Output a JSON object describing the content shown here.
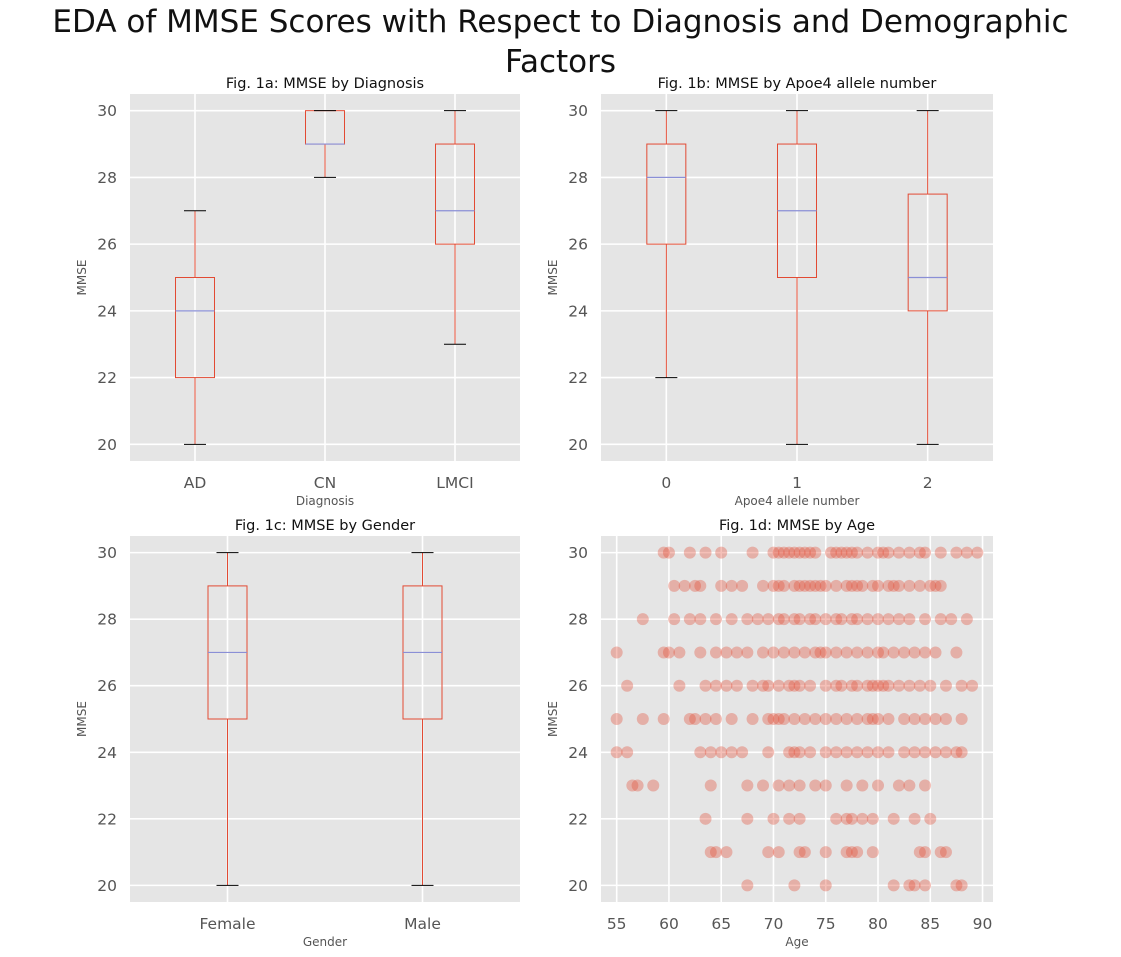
{
  "figure": {
    "suptitle": "EDA of MMSE Scores with Respect to Diagnosis and Demographic Factors"
  },
  "colors": {
    "panel_bg": "#e5e5e5",
    "grid": "#ffffff",
    "box": "#e24a33",
    "median": "#8a8fd6",
    "cap": "#000000",
    "scatter": "#e24a33"
  },
  "chart_data": [
    {
      "type": "box",
      "title": "Fig. 1a: MMSE by Diagnosis",
      "xlabel": "Diagnosis",
      "ylabel": "MMSE",
      "ylim": [
        19.5,
        30.5
      ],
      "yticks": [
        20,
        22,
        24,
        26,
        28,
        30
      ],
      "categories": [
        "AD",
        "CN",
        "LMCI"
      ],
      "boxes": [
        {
          "whislo": 20,
          "q1": 22,
          "med": 24,
          "q3": 25,
          "whishi": 27
        },
        {
          "whislo": 28,
          "q1": 29,
          "med": 29,
          "q3": 30,
          "whishi": 30
        },
        {
          "whislo": 23,
          "q1": 26,
          "med": 27,
          "q3": 29,
          "whishi": 30
        }
      ]
    },
    {
      "type": "box",
      "title": "Fig. 1b: MMSE by Apoe4 allele number",
      "xlabel": "Apoe4 allele number",
      "ylabel": "MMSE",
      "ylim": [
        19.5,
        30.5
      ],
      "yticks": [
        20,
        22,
        24,
        26,
        28,
        30
      ],
      "categories": [
        "0",
        "1",
        "2"
      ],
      "boxes": [
        {
          "whislo": 22,
          "q1": 26,
          "med": 28,
          "q3": 29,
          "whishi": 30
        },
        {
          "whislo": 20,
          "q1": 25,
          "med": 27,
          "q3": 29,
          "whishi": 30
        },
        {
          "whislo": 20,
          "q1": 24,
          "med": 25,
          "q3": 27.5,
          "whishi": 30
        }
      ]
    },
    {
      "type": "box",
      "title": "Fig. 1c: MMSE by Gender",
      "xlabel": "Gender",
      "ylabel": "MMSE",
      "ylim": [
        19.5,
        30.5
      ],
      "yticks": [
        20,
        22,
        24,
        26,
        28,
        30
      ],
      "categories": [
        "Female",
        "Male"
      ],
      "boxes": [
        {
          "whislo": 20,
          "q1": 25,
          "med": 27,
          "q3": 29,
          "whishi": 30
        },
        {
          "whislo": 20,
          "q1": 25,
          "med": 27,
          "q3": 29,
          "whishi": 30
        }
      ]
    },
    {
      "type": "scatter",
      "title": "Fig. 1d: MMSE by Age",
      "xlabel": "Age",
      "ylabel": "MMSE",
      "xlim": [
        53.5,
        91
      ],
      "ylim": [
        19.5,
        30.5
      ],
      "xticks": [
        55,
        60,
        65,
        70,
        75,
        80,
        85,
        90
      ],
      "yticks": [
        20,
        22,
        24,
        26,
        28,
        30
      ],
      "points": [
        [
          59.5,
          30
        ],
        [
          60,
          30
        ],
        [
          62,
          30
        ],
        [
          63.5,
          30
        ],
        [
          65,
          30
        ],
        [
          68,
          30
        ],
        [
          70,
          30
        ],
        [
          70.5,
          30
        ],
        [
          71,
          30
        ],
        [
          71.5,
          30
        ],
        [
          72,
          30
        ],
        [
          72.5,
          30
        ],
        [
          73,
          30
        ],
        [
          73.5,
          30
        ],
        [
          74,
          30
        ],
        [
          75.5,
          30
        ],
        [
          76,
          30
        ],
        [
          76.5,
          30
        ],
        [
          77,
          30
        ],
        [
          77.5,
          30
        ],
        [
          78,
          30
        ],
        [
          79,
          30
        ],
        [
          80,
          30
        ],
        [
          80.5,
          30
        ],
        [
          81,
          30
        ],
        [
          82,
          30
        ],
        [
          83,
          30
        ],
        [
          84,
          30
        ],
        [
          84.5,
          30
        ],
        [
          86,
          30
        ],
        [
          87.5,
          30
        ],
        [
          88.5,
          30
        ],
        [
          89.5,
          30
        ],
        [
          60.5,
          29
        ],
        [
          61.5,
          29
        ],
        [
          62.5,
          29
        ],
        [
          63,
          29
        ],
        [
          65,
          29
        ],
        [
          66,
          29
        ],
        [
          67,
          29
        ],
        [
          69,
          29
        ],
        [
          70,
          29
        ],
        [
          70.5,
          29
        ],
        [
          71,
          29
        ],
        [
          72,
          29
        ],
        [
          72.5,
          29
        ],
        [
          73,
          29
        ],
        [
          73.5,
          29
        ],
        [
          74,
          29
        ],
        [
          74.5,
          29
        ],
        [
          75,
          29
        ],
        [
          76,
          29
        ],
        [
          77,
          29
        ],
        [
          77.5,
          29
        ],
        [
          78,
          29
        ],
        [
          78.5,
          29
        ],
        [
          79.5,
          29
        ],
        [
          80,
          29
        ],
        [
          81,
          29
        ],
        [
          81.5,
          29
        ],
        [
          82,
          29
        ],
        [
          83,
          29
        ],
        [
          84,
          29
        ],
        [
          85,
          29
        ],
        [
          85.5,
          29
        ],
        [
          86,
          29
        ],
        [
          57.5,
          28
        ],
        [
          60.5,
          28
        ],
        [
          62,
          28
        ],
        [
          63,
          28
        ],
        [
          64.5,
          28
        ],
        [
          66,
          28
        ],
        [
          67.5,
          28
        ],
        [
          68.5,
          28
        ],
        [
          69.5,
          28
        ],
        [
          70.5,
          28
        ],
        [
          71,
          28
        ],
        [
          72,
          28
        ],
        [
          72.5,
          28
        ],
        [
          73.5,
          28
        ],
        [
          74,
          28
        ],
        [
          75,
          28
        ],
        [
          76,
          28
        ],
        [
          76.5,
          28
        ],
        [
          77.5,
          28
        ],
        [
          78,
          28
        ],
        [
          79,
          28
        ],
        [
          80,
          28
        ],
        [
          81,
          28
        ],
        [
          82,
          28
        ],
        [
          83,
          28
        ],
        [
          84.5,
          28
        ],
        [
          86,
          28
        ],
        [
          87,
          28
        ],
        [
          88.5,
          28
        ],
        [
          55,
          27
        ],
        [
          59.5,
          27
        ],
        [
          60,
          27
        ],
        [
          61,
          27
        ],
        [
          63,
          27
        ],
        [
          64.5,
          27
        ],
        [
          65.5,
          27
        ],
        [
          66.5,
          27
        ],
        [
          67.5,
          27
        ],
        [
          69,
          27
        ],
        [
          70,
          27
        ],
        [
          71,
          27
        ],
        [
          72,
          27
        ],
        [
          73,
          27
        ],
        [
          74,
          27
        ],
        [
          74.5,
          27
        ],
        [
          75,
          27
        ],
        [
          76,
          27
        ],
        [
          77,
          27
        ],
        [
          78,
          27
        ],
        [
          79,
          27
        ],
        [
          80,
          27
        ],
        [
          80.5,
          27
        ],
        [
          81.5,
          27
        ],
        [
          82.5,
          27
        ],
        [
          83.5,
          27
        ],
        [
          84.5,
          27
        ],
        [
          85.5,
          27
        ],
        [
          87.5,
          27
        ],
        [
          56,
          26
        ],
        [
          61,
          26
        ],
        [
          63.5,
          26
        ],
        [
          64.5,
          26
        ],
        [
          65.5,
          26
        ],
        [
          66.5,
          26
        ],
        [
          68,
          26
        ],
        [
          69,
          26
        ],
        [
          69.5,
          26
        ],
        [
          70.5,
          26
        ],
        [
          71.5,
          26
        ],
        [
          72,
          26
        ],
        [
          72.5,
          26
        ],
        [
          73.5,
          26
        ],
        [
          75,
          26
        ],
        [
          76,
          26
        ],
        [
          76.5,
          26
        ],
        [
          77.5,
          26
        ],
        [
          78,
          26
        ],
        [
          79,
          26
        ],
        [
          79.5,
          26
        ],
        [
          80,
          26
        ],
        [
          80.5,
          26
        ],
        [
          81,
          26
        ],
        [
          82,
          26
        ],
        [
          83,
          26
        ],
        [
          84,
          26
        ],
        [
          85,
          26
        ],
        [
          86.5,
          26
        ],
        [
          88,
          26
        ],
        [
          89,
          26
        ],
        [
          55,
          25
        ],
        [
          57.5,
          25
        ],
        [
          59.5,
          25
        ],
        [
          62,
          25
        ],
        [
          62.5,
          25
        ],
        [
          63.5,
          25
        ],
        [
          64.5,
          25
        ],
        [
          66,
          25
        ],
        [
          68,
          25
        ],
        [
          69.5,
          25
        ],
        [
          70,
          25
        ],
        [
          70.5,
          25
        ],
        [
          71,
          25
        ],
        [
          72,
          25
        ],
        [
          73,
          25
        ],
        [
          74,
          25
        ],
        [
          75,
          25
        ],
        [
          76,
          25
        ],
        [
          77,
          25
        ],
        [
          78,
          25
        ],
        [
          79,
          25
        ],
        [
          79.5,
          25
        ],
        [
          80,
          25
        ],
        [
          81,
          25
        ],
        [
          82.5,
          25
        ],
        [
          83.5,
          25
        ],
        [
          84.5,
          25
        ],
        [
          85.5,
          25
        ],
        [
          86.5,
          25
        ],
        [
          88,
          25
        ],
        [
          55,
          24
        ],
        [
          56,
          24
        ],
        [
          63,
          24
        ],
        [
          64,
          24
        ],
        [
          65,
          24
        ],
        [
          66,
          24
        ],
        [
          67,
          24
        ],
        [
          69.5,
          24
        ],
        [
          71.5,
          24
        ],
        [
          72,
          24
        ],
        [
          72.5,
          24
        ],
        [
          73.5,
          24
        ],
        [
          75,
          24
        ],
        [
          76,
          24
        ],
        [
          77,
          24
        ],
        [
          78,
          24
        ],
        [
          79,
          24
        ],
        [
          80,
          24
        ],
        [
          81,
          24
        ],
        [
          82.5,
          24
        ],
        [
          83.5,
          24
        ],
        [
          84.5,
          24
        ],
        [
          85.5,
          24
        ],
        [
          86.5,
          24
        ],
        [
          87.5,
          24
        ],
        [
          88,
          24
        ],
        [
          56.5,
          23
        ],
        [
          57,
          23
        ],
        [
          58.5,
          23
        ],
        [
          64,
          23
        ],
        [
          67.5,
          23
        ],
        [
          69,
          23
        ],
        [
          70.5,
          23
        ],
        [
          71.5,
          23
        ],
        [
          72.5,
          23
        ],
        [
          74,
          23
        ],
        [
          75,
          23
        ],
        [
          77,
          23
        ],
        [
          78.5,
          23
        ],
        [
          80,
          23
        ],
        [
          82,
          23
        ],
        [
          83,
          23
        ],
        [
          84.5,
          23
        ],
        [
          63.5,
          22
        ],
        [
          67.5,
          22
        ],
        [
          70,
          22
        ],
        [
          71.5,
          22
        ],
        [
          72.5,
          22
        ],
        [
          76,
          22
        ],
        [
          77,
          22
        ],
        [
          77.5,
          22
        ],
        [
          78.5,
          22
        ],
        [
          79.5,
          22
        ],
        [
          81.5,
          22
        ],
        [
          83.5,
          22
        ],
        [
          85,
          22
        ],
        [
          64,
          21
        ],
        [
          64.5,
          21
        ],
        [
          65.5,
          21
        ],
        [
          69.5,
          21
        ],
        [
          70.5,
          21
        ],
        [
          72.5,
          21
        ],
        [
          73,
          21
        ],
        [
          75,
          21
        ],
        [
          77,
          21
        ],
        [
          77.5,
          21
        ],
        [
          78,
          21
        ],
        [
          79.5,
          21
        ],
        [
          84,
          21
        ],
        [
          84.5,
          21
        ],
        [
          86,
          21
        ],
        [
          86.5,
          21
        ],
        [
          67.5,
          20
        ],
        [
          72,
          20
        ],
        [
          75,
          20
        ],
        [
          81.5,
          20
        ],
        [
          83,
          20
        ],
        [
          83.5,
          20
        ],
        [
          84.5,
          20
        ],
        [
          87.5,
          20
        ],
        [
          88,
          20
        ]
      ]
    }
  ]
}
